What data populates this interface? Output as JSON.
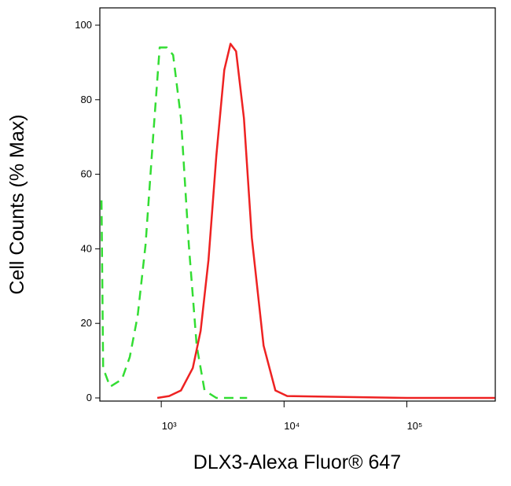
{
  "chart_data": {
    "type": "line",
    "xlabel": "DLX3-Alexa Fluor® 647",
    "ylabel": "Cell Counts (% Max)",
    "xscale": "log",
    "xlim": [
      316,
      525000
    ],
    "ylim": [
      0,
      100
    ],
    "xticks": [
      {
        "value": 1000,
        "label": "10³"
      },
      {
        "value": 10000,
        "label": "10⁴"
      },
      {
        "value": 100000,
        "label": "10⁵"
      }
    ],
    "yticks": [
      0,
      20,
      40,
      60,
      80,
      100
    ],
    "series": [
      {
        "color": "#33dd33",
        "dashed": true,
        "x": [
          326,
          336,
          383,
          478,
          554,
          642,
          744,
          863,
          970,
          1109,
          1248,
          1446,
          1676,
          1943,
          2252,
          2810,
          5000
        ],
        "values": [
          53,
          8,
          3,
          5,
          11,
          22,
          41,
          71,
          94,
          94,
          92,
          75,
          41,
          14,
          2,
          0,
          0
        ]
      },
      {
        "color": "#ee2222",
        "dashed": false,
        "x": [
          929,
          1159,
          1446,
          1805,
          2093,
          2425,
          2810,
          3258,
          3664,
          4064,
          4710,
          5458,
          6808,
          8497,
          10600,
          100000,
          520000
        ],
        "values": [
          0,
          0.5,
          2,
          8,
          18,
          37,
          65,
          88,
          95,
          93,
          75,
          43,
          14,
          2,
          0.5,
          0,
          0
        ]
      }
    ]
  }
}
